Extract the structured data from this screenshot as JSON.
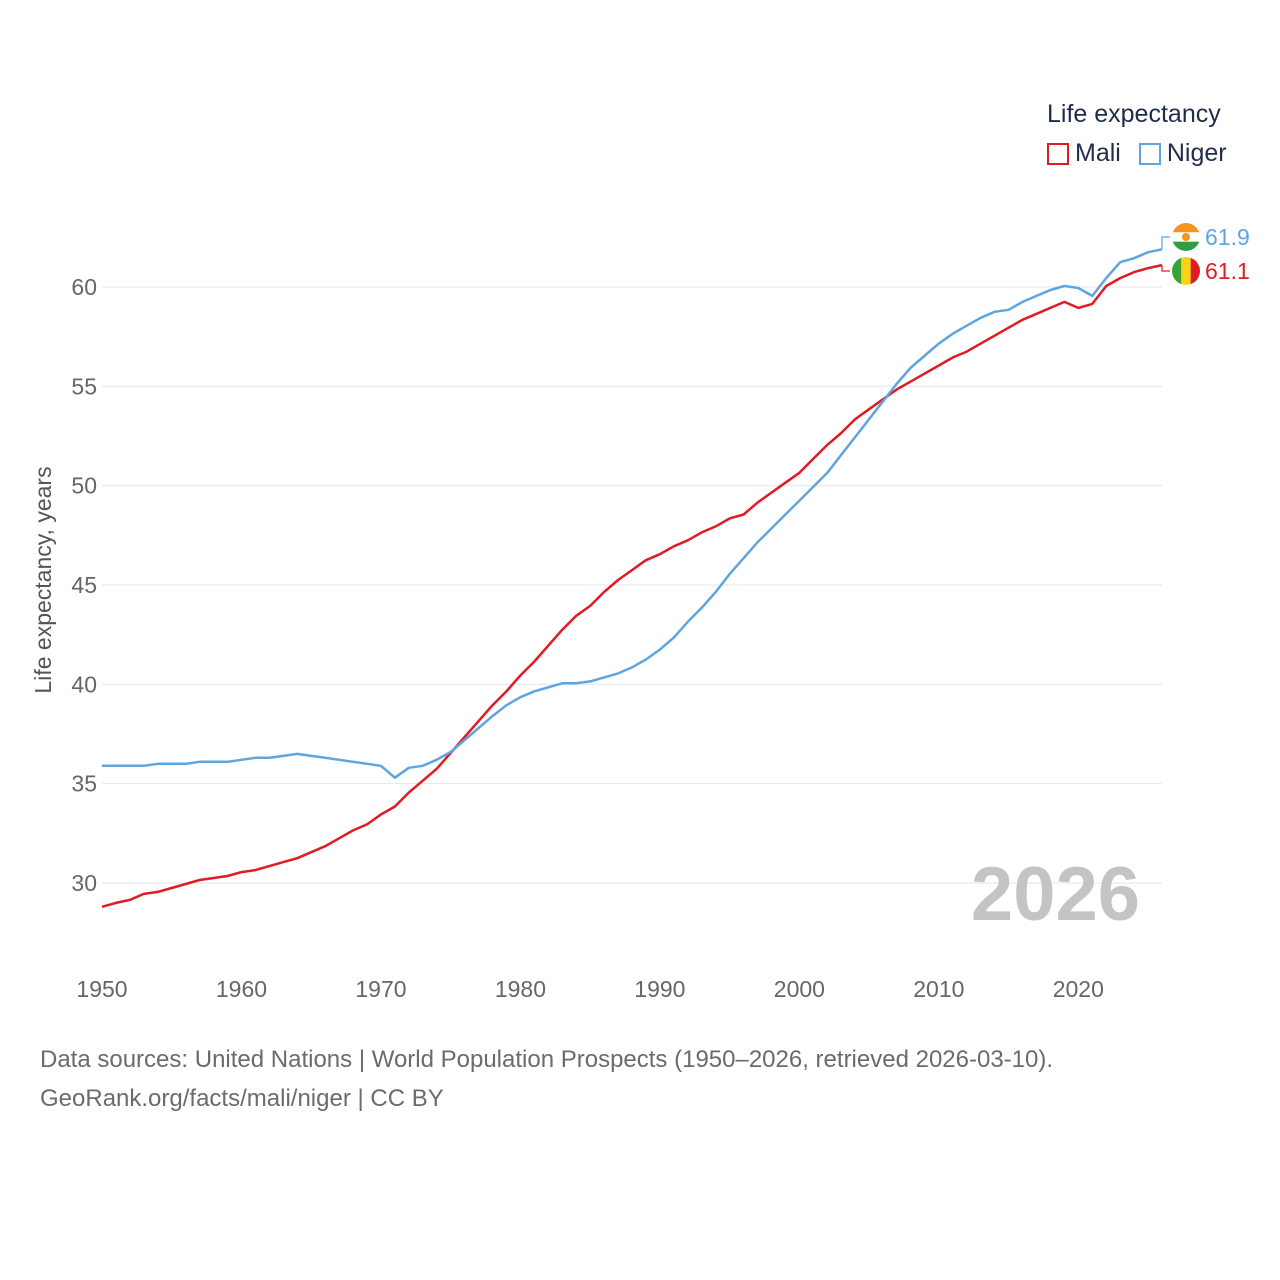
{
  "legend": {
    "title": "Life expectancy"
  },
  "footer": {
    "source": "Data sources: United Nations | World Population Prospects (1950–2026, retrieved 2026-03-10).",
    "credit": "GeoRank.org/facts/mali/niger | CC BY"
  },
  "chart_data": {
    "type": "line",
    "title": "",
    "xlabel": "",
    "ylabel": "Life expectancy, years",
    "xlim": [
      1950,
      2026
    ],
    "ylim": [
      27,
      63
    ],
    "x_ticks": [
      1950,
      1960,
      1970,
      1980,
      1990,
      2000,
      2010,
      2020
    ],
    "x_tick_labels": [
      "1950",
      "1960",
      "1970",
      "1980",
      "1990",
      "2000",
      "2010",
      "2020"
    ],
    "y_ticks": [
      30,
      35,
      40,
      45,
      50,
      55,
      60
    ],
    "y_tick_labels": [
      "30",
      "35",
      "40",
      "45",
      "50",
      "55",
      "60"
    ],
    "year_watermark": "2026",
    "series": [
      {
        "name": "Mali",
        "color": "#e01b24",
        "end_label": "61.1",
        "flag_icon": "mali-flag-icon",
        "x": [
          1950,
          1951,
          1952,
          1953,
          1954,
          1955,
          1956,
          1957,
          1958,
          1959,
          1960,
          1961,
          1962,
          1963,
          1964,
          1965,
          1966,
          1967,
          1968,
          1969,
          1970,
          1971,
          1972,
          1973,
          1974,
          1975,
          1976,
          1977,
          1978,
          1979,
          1980,
          1981,
          1982,
          1983,
          1984,
          1985,
          1986,
          1987,
          1988,
          1989,
          1990,
          1991,
          1992,
          1993,
          1994,
          1995,
          1996,
          1997,
          1998,
          1999,
          2000,
          2001,
          2002,
          2003,
          2004,
          2005,
          2006,
          2007,
          2008,
          2009,
          2010,
          2011,
          2012,
          2013,
          2014,
          2015,
          2016,
          2017,
          2018,
          2019,
          2020,
          2021,
          2022,
          2023,
          2024,
          2025,
          2026
        ],
        "values": [
          28.8,
          29.0,
          29.15,
          29.45,
          29.55,
          29.75,
          29.95,
          30.15,
          30.25,
          30.35,
          30.55,
          30.65,
          30.85,
          31.05,
          31.25,
          31.55,
          31.85,
          32.25,
          32.65,
          32.95,
          33.45,
          33.85,
          34.55,
          35.15,
          35.75,
          36.55,
          37.35,
          38.15,
          38.95,
          39.65,
          40.45,
          41.15,
          41.95,
          42.75,
          43.45,
          43.95,
          44.65,
          45.25,
          45.75,
          46.25,
          46.55,
          46.95,
          47.25,
          47.65,
          47.95,
          48.35,
          48.55,
          49.15,
          49.65,
          50.15,
          50.65,
          51.35,
          52.05,
          52.65,
          53.35,
          53.85,
          54.35,
          54.85,
          55.25,
          55.65,
          56.05,
          56.45,
          56.75,
          57.15,
          57.55,
          57.95,
          58.35,
          58.65,
          58.95,
          59.25,
          58.95,
          59.15,
          60.05,
          60.45,
          60.75,
          60.95,
          61.1
        ]
      },
      {
        "name": "Niger",
        "color": "#5ea5e0",
        "end_label": "61.9",
        "flag_icon": "niger-flag-icon",
        "x": [
          1950,
          1951,
          1952,
          1953,
          1954,
          1955,
          1956,
          1957,
          1958,
          1959,
          1960,
          1961,
          1962,
          1963,
          1964,
          1965,
          1966,
          1967,
          1968,
          1969,
          1970,
          1971,
          1972,
          1973,
          1974,
          1975,
          1976,
          1977,
          1978,
          1979,
          1980,
          1981,
          1982,
          1983,
          1984,
          1985,
          1986,
          1987,
          1988,
          1989,
          1990,
          1991,
          1992,
          1993,
          1994,
          1995,
          1996,
          1997,
          1998,
          1999,
          2000,
          2001,
          2002,
          2003,
          2004,
          2005,
          2006,
          2007,
          2008,
          2009,
          2010,
          2011,
          2012,
          2013,
          2014,
          2015,
          2016,
          2017,
          2018,
          2019,
          2020,
          2021,
          2022,
          2023,
          2024,
          2025,
          2026
        ],
        "values": [
          35.9,
          35.9,
          35.9,
          35.9,
          36.0,
          36.0,
          36.0,
          36.1,
          36.1,
          36.1,
          36.2,
          36.3,
          36.3,
          36.4,
          36.5,
          36.4,
          36.3,
          36.2,
          36.1,
          36.0,
          35.9,
          35.3,
          35.8,
          35.9,
          36.2,
          36.6,
          37.2,
          37.8,
          38.4,
          38.95,
          39.35,
          39.65,
          39.85,
          40.05,
          40.05,
          40.15,
          40.35,
          40.55,
          40.85,
          41.25,
          41.75,
          42.35,
          43.15,
          43.85,
          44.65,
          45.55,
          46.35,
          47.15,
          47.85,
          48.55,
          49.25,
          49.95,
          50.65,
          51.55,
          52.45,
          53.35,
          54.25,
          55.15,
          55.95,
          56.55,
          57.15,
          57.65,
          58.05,
          58.45,
          58.75,
          58.85,
          59.25,
          59.55,
          59.85,
          60.05,
          59.95,
          59.55,
          60.45,
          61.25,
          61.45,
          61.75,
          61.9
        ]
      }
    ]
  }
}
